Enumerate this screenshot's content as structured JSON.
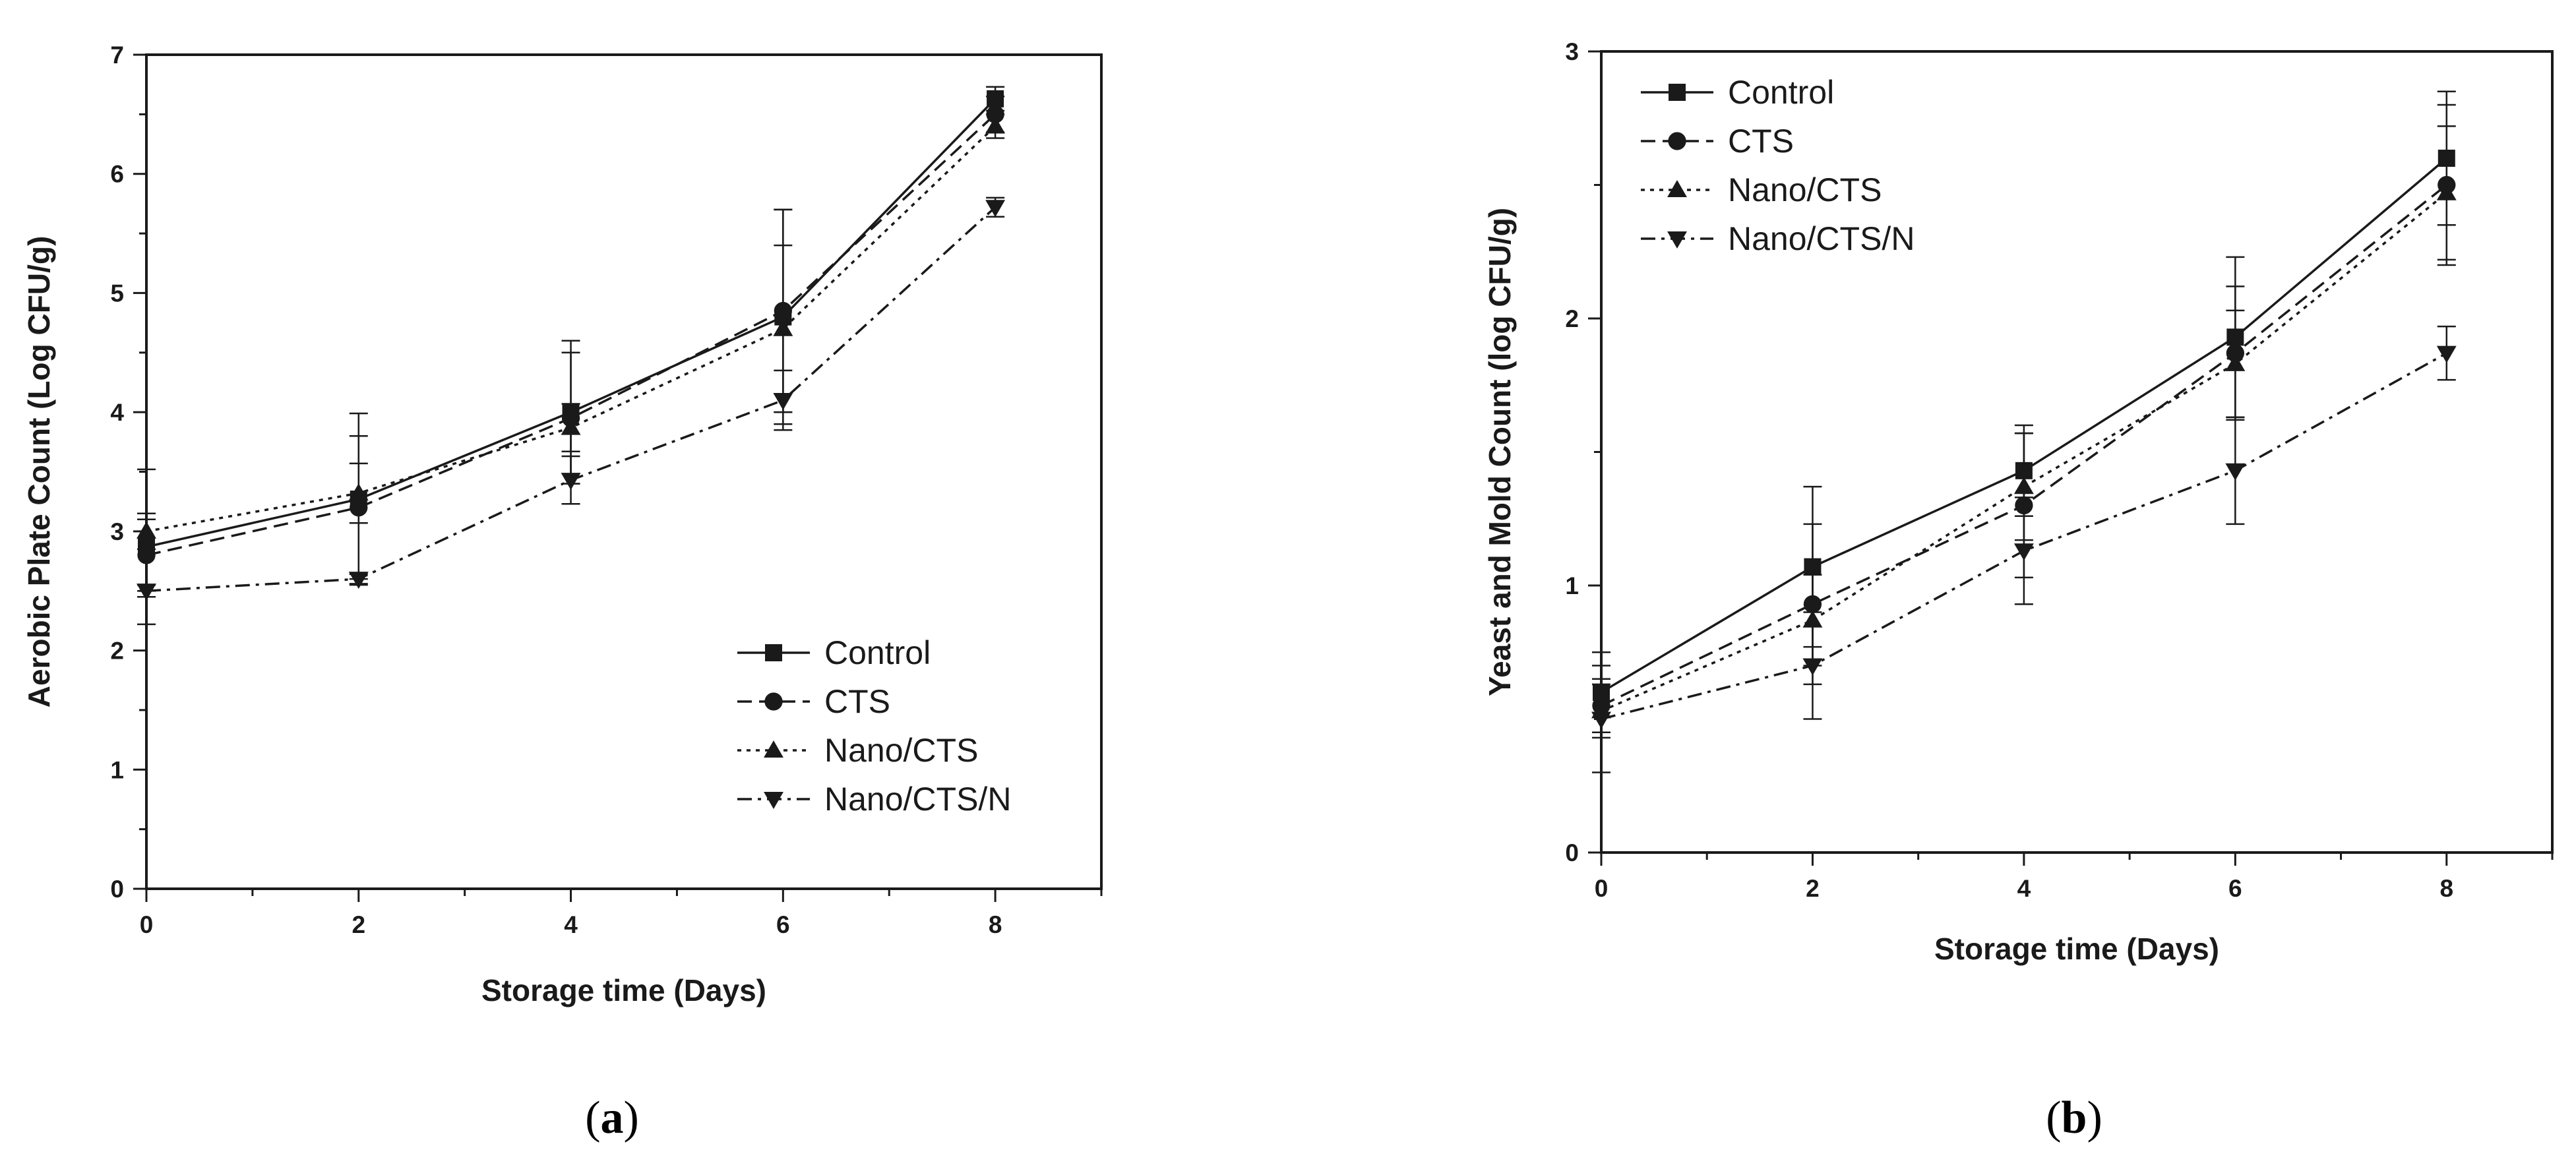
{
  "figure": {
    "colors": {
      "ink": "#1a1a1a",
      "background": "#ffffff"
    }
  },
  "chart_data": [
    {
      "type": "line",
      "panel_label": "a",
      "title": "",
      "xlabel": "Storage time (Days)",
      "ylabel": "Aerobic Plate Count (Log CFU/g)",
      "xlim": [
        0,
        9
      ],
      "ylim": [
        0,
        7
      ],
      "x_ticks": [
        0,
        2,
        4,
        6,
        8
      ],
      "y_ticks": [
        0,
        1,
        2,
        3,
        4,
        5,
        6,
        7
      ],
      "legend_position": "bottom-right",
      "x": [
        0,
        2,
        4,
        6,
        8
      ],
      "series": [
        {
          "name": "Control",
          "marker": "square",
          "dash": "solid",
          "values": [
            2.87,
            3.27,
            4.0,
            4.8,
            6.63
          ],
          "errors": [
            0.65,
            0.72,
            0.6,
            0.9,
            0.1
          ]
        },
        {
          "name": "CTS",
          "marker": "circle",
          "dash": "dashed",
          "values": [
            2.8,
            3.2,
            3.95,
            4.85,
            6.5
          ],
          "errors": [
            0.3,
            0.6,
            0.55,
            0.85,
            0.15
          ]
        },
        {
          "name": "Nano/CTS",
          "marker": "triangle-up",
          "dash": "dotted",
          "values": [
            3.0,
            3.32,
            3.87,
            4.7,
            6.4
          ],
          "errors": [
            0.15,
            0.25,
            0.2,
            0.7,
            0.1
          ]
        },
        {
          "name": "Nano/CTS/N",
          "marker": "triangle-down",
          "dash": "dashdot",
          "values": [
            2.5,
            2.6,
            3.43,
            4.1,
            5.72
          ],
          "errors": [
            0.05,
            0.04,
            0.2,
            0.25,
            0.08
          ]
        }
      ]
    },
    {
      "type": "line",
      "panel_label": "b",
      "title": "",
      "xlabel": "Storage time (Days)",
      "ylabel": "Yeast and Mold Count (log CFU/g)",
      "xlim": [
        0,
        9
      ],
      "ylim": [
        0,
        3
      ],
      "x_ticks": [
        0,
        2,
        4,
        6,
        8
      ],
      "y_ticks": [
        0,
        1,
        2,
        3
      ],
      "legend_position": "top-left",
      "x": [
        0,
        2,
        4,
        6,
        8
      ],
      "series": [
        {
          "name": "Control",
          "marker": "square",
          "dash": "solid",
          "values": [
            0.6,
            1.07,
            1.43,
            1.93,
            2.6
          ],
          "errors": [
            0.15,
            0.3,
            0.17,
            0.3,
            0.25
          ]
        },
        {
          "name": "CTS",
          "marker": "circle",
          "dash": "dashed",
          "values": [
            0.55,
            0.93,
            1.3,
            1.87,
            2.5
          ],
          "errors": [
            0.1,
            0.3,
            0.27,
            0.25,
            0.3
          ]
        },
        {
          "name": "Nano/CTS",
          "marker": "triangle-up",
          "dash": "dotted",
          "values": [
            0.53,
            0.87,
            1.37,
            1.83,
            2.47
          ],
          "errors": [
            0.1,
            0.17,
            0.2,
            0.2,
            0.25
          ]
        },
        {
          "name": "Nano/CTS/N",
          "marker": "triangle-down",
          "dash": "dashdot",
          "values": [
            0.5,
            0.7,
            1.13,
            1.43,
            1.87
          ],
          "errors": [
            0.2,
            0.2,
            0.2,
            0.2,
            0.1
          ]
        }
      ]
    }
  ]
}
